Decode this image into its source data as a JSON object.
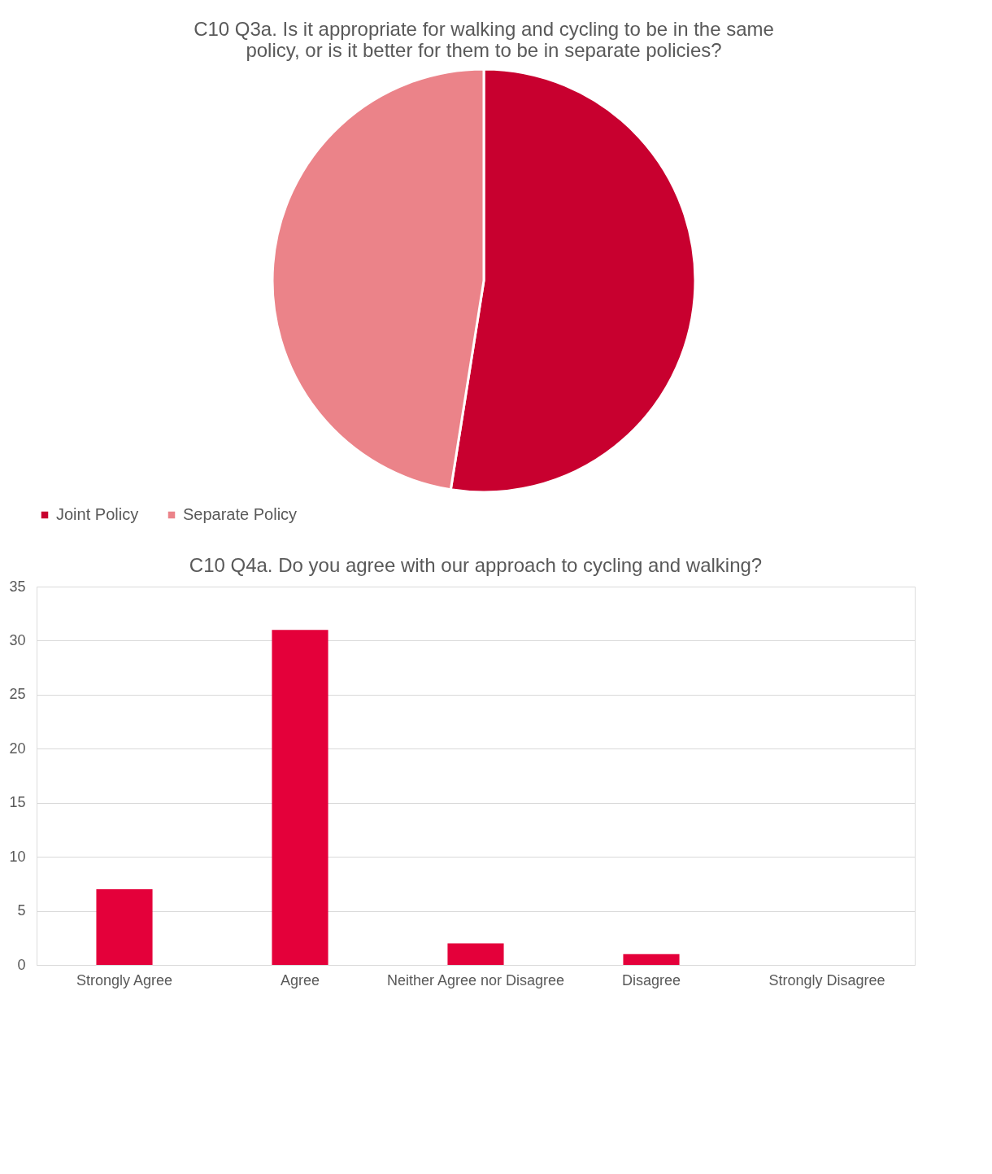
{
  "chart_data": [
    {
      "type": "pie",
      "title": "C10 Q3a. Is it appropriate for walking and cycling to be in the same policy, or is it better for them to be in separate policies?",
      "categories": [
        "Joint Policy",
        "Separate Policy"
      ],
      "values": [
        52.5,
        47.5
      ],
      "colors": [
        "#c8002f",
        "#eb8389"
      ],
      "legend": "bottom"
    },
    {
      "type": "bar",
      "title": "C10 Q4a. Do you agree with our approach to cycling and walking?",
      "categories": [
        "Strongly Agree",
        "Agree",
        "Neither Agree nor Disagree",
        "Disagree",
        "Strongly Disagree"
      ],
      "values": [
        7,
        31,
        2,
        1,
        0
      ],
      "color": "#e4003a",
      "ylim": [
        0,
        35
      ],
      "yticks": [
        0,
        5,
        10,
        15,
        20,
        25,
        30,
        35
      ],
      "grid": "y"
    }
  ]
}
